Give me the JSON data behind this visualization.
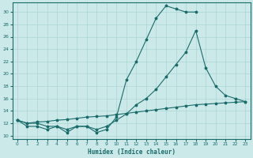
{
  "xlabel": "Humidex (Indice chaleur)",
  "background_color": "#cce9e9",
  "grid_color": "#aad4d4",
  "line_color": "#1a6b6b",
  "xlim": [
    -0.5,
    23.5
  ],
  "ylim": [
    9.5,
    31.5
  ],
  "xticks": [
    0,
    1,
    2,
    3,
    4,
    5,
    6,
    7,
    8,
    9,
    10,
    11,
    12,
    13,
    14,
    15,
    16,
    17,
    18,
    19,
    20,
    21,
    22,
    23
  ],
  "yticks": [
    10,
    12,
    14,
    16,
    18,
    20,
    22,
    24,
    26,
    28,
    30
  ],
  "curve1_x": [
    0,
    1,
    2,
    3,
    4,
    5,
    6,
    7,
    8,
    9,
    10,
    11,
    12,
    13,
    14,
    15,
    16,
    17,
    18
  ],
  "curve1_y": [
    12.5,
    11.5,
    11.5,
    11.0,
    11.5,
    10.5,
    11.5,
    11.5,
    10.5,
    11.0,
    13.0,
    19.0,
    22.0,
    25.5,
    29.0,
    31.0,
    30.5,
    30.0,
    30.0
  ],
  "curve2_x": [
    0,
    1,
    2,
    3,
    4,
    5,
    6,
    7,
    8,
    9,
    10,
    11,
    12,
    13,
    14,
    15,
    16,
    17,
    18,
    19,
    20,
    21,
    22,
    23
  ],
  "curve2_y": [
    12.5,
    12.0,
    12.0,
    11.5,
    11.5,
    11.0,
    11.5,
    11.5,
    11.0,
    11.5,
    12.5,
    13.5,
    15.0,
    16.0,
    17.5,
    19.5,
    21.5,
    23.5,
    27.0,
    21.0,
    18.0,
    16.5,
    16.0,
    15.5
  ],
  "curve3_x": [
    0,
    1,
    2,
    3,
    4,
    5,
    6,
    7,
    8,
    9,
    10,
    11,
    12,
    13,
    14,
    15,
    16,
    17,
    18,
    19,
    20,
    21,
    22,
    23
  ],
  "curve3_y": [
    12.5,
    12.0,
    12.2,
    12.3,
    12.5,
    12.6,
    12.8,
    13.0,
    13.1,
    13.2,
    13.4,
    13.6,
    13.8,
    14.0,
    14.2,
    14.4,
    14.6,
    14.8,
    15.0,
    15.1,
    15.2,
    15.3,
    15.4,
    15.5
  ],
  "fig_width": 3.2,
  "fig_height": 2.0,
  "dpi": 100
}
